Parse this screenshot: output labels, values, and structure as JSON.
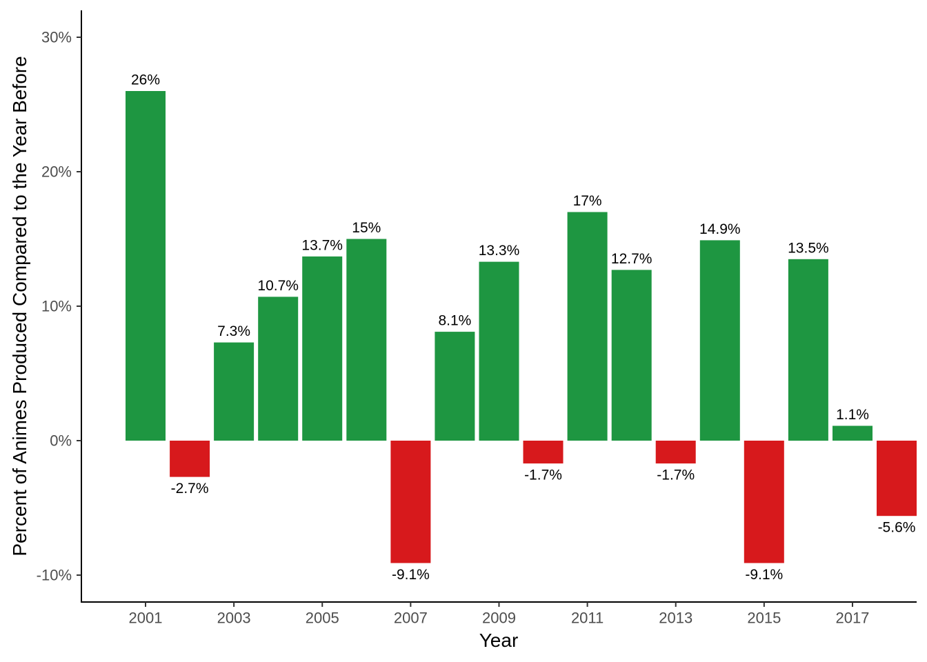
{
  "chart_data": {
    "type": "bar",
    "xlabel": "Year",
    "ylabel": "Percent of Animes Produced Compared to the Year Before",
    "categories": [
      "2001",
      "2002",
      "2003",
      "2004",
      "2005",
      "2006",
      "2007",
      "2008",
      "2009",
      "2010",
      "2011",
      "2012",
      "2013",
      "2014",
      "2015",
      "2016",
      "2017",
      "2018"
    ],
    "values": [
      26,
      -2.7,
      7.3,
      10.7,
      13.7,
      15,
      -9.1,
      8.1,
      13.3,
      -1.7,
      17,
      12.7,
      -1.7,
      14.9,
      -9.1,
      13.5,
      1.1,
      -5.6
    ],
    "data_labels": [
      "26%",
      "-2.7%",
      "7.3%",
      "10.7%",
      "13.7%",
      "15%",
      "-9.1%",
      "8.1%",
      "13.3%",
      "-1.7%",
      "17%",
      "12.7%",
      "-1.7%",
      "14.9%",
      "-9.1%",
      "13.5%",
      "1.1%",
      "-5.6%"
    ],
    "x_ticks": [
      "2001",
      "2003",
      "2005",
      "2007",
      "2009",
      "2011",
      "2013",
      "2015",
      "2017"
    ],
    "y_ticks": [
      {
        "value": -10,
        "label": "-10%"
      },
      {
        "value": 0,
        "label": "0%"
      },
      {
        "value": 10,
        "label": "10%"
      },
      {
        "value": 20,
        "label": "20%"
      },
      {
        "value": 30,
        "label": "30%"
      }
    ],
    "ylim": [
      -12,
      32
    ],
    "grid": false,
    "legend": "none",
    "colors": {
      "positive": "#1e9641",
      "negative": "#d7191c"
    }
  }
}
